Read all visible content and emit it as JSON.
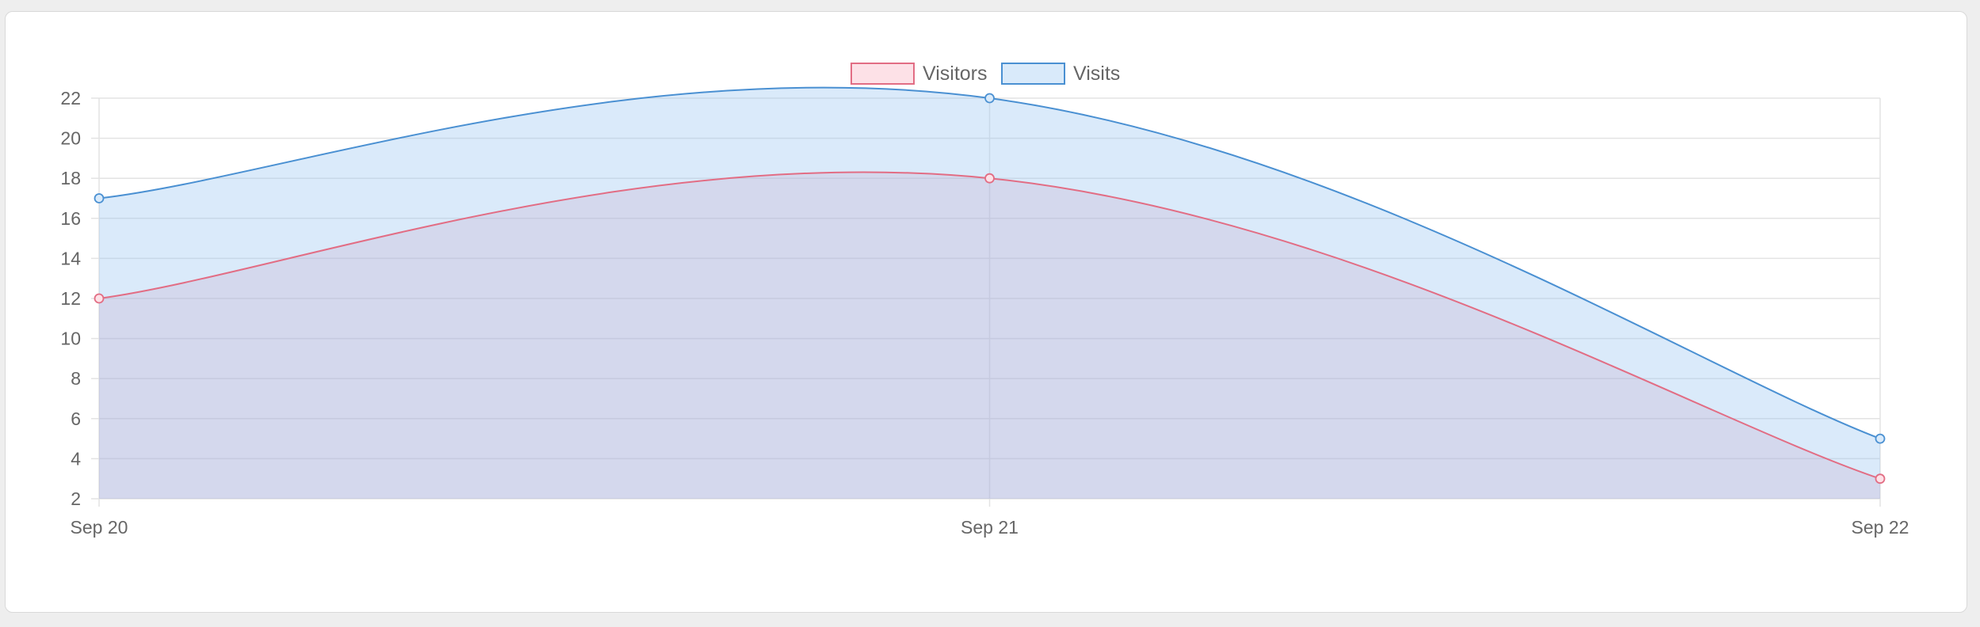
{
  "chart_data": {
    "type": "area",
    "categories": [
      "Sep 20",
      "Sep 21",
      "Sep 22"
    ],
    "series": [
      {
        "name": "Visitors",
        "values": [
          12,
          18,
          3
        ],
        "stroke": "#e26d84",
        "fill": "rgba(214, 134, 168, 0.22)",
        "legend_fill": "#fde1e7"
      },
      {
        "name": "Visits",
        "values": [
          17,
          22,
          5
        ],
        "stroke": "#4a90d2",
        "fill": "rgba(150, 195, 240, 0.35)",
        "legend_fill": "#d9eafa"
      }
    ],
    "ylim": [
      2,
      22
    ],
    "yticks": [
      2,
      4,
      6,
      8,
      10,
      12,
      14,
      16,
      18,
      20,
      22
    ],
    "grid": true,
    "legend_position": "top-center"
  }
}
